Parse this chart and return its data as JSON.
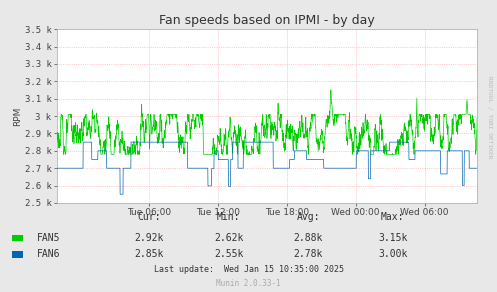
{
  "title": "Fan speeds based on IPMI - by day",
  "ylabel": "RPM",
  "bg_color": "#e8e8e8",
  "plot_bg_color": "#ffffff",
  "fan5_color": "#00cc00",
  "fan6_color": "#0066b3",
  "grid_color": "#ff9999",
  "grid_linestyle": ":",
  "ylim": [
    2500,
    3500
  ],
  "yticks": [
    2500,
    2600,
    2700,
    2800,
    2900,
    3000,
    3100,
    3200,
    3300,
    3400,
    3500
  ],
  "ytick_labels": [
    "2.5 k",
    "2.6 k",
    "2.7 k",
    "2.8 k",
    "2.9 k",
    "3 k",
    "3.1 k",
    "3.2 k",
    "3.3 k",
    "3.4 k",
    "3.5 k"
  ],
  "xtick_labels": [
    "Tue 06:00",
    "Tue 12:00",
    "Tue 18:00",
    "Wed 00:00",
    "Wed 06:00"
  ],
  "fan5_stats": [
    "2.92k",
    "2.62k",
    "2.88k",
    "3.15k"
  ],
  "fan6_stats": [
    "2.85k",
    "2.55k",
    "2.78k",
    "3.00k"
  ],
  "last_update": "Last update:  Wed Jan 15 10:35:00 2025",
  "munin_version": "Munin 2.0.33-1",
  "watermark": "RRDTOOL / TOBI OETIKER",
  "title_fontsize": 9,
  "axis_fontsize": 6.5,
  "legend_fontsize": 7,
  "total_hours": 36.58,
  "tick_hours": [
    8.0,
    14.0,
    20.0,
    26.0,
    32.0
  ]
}
